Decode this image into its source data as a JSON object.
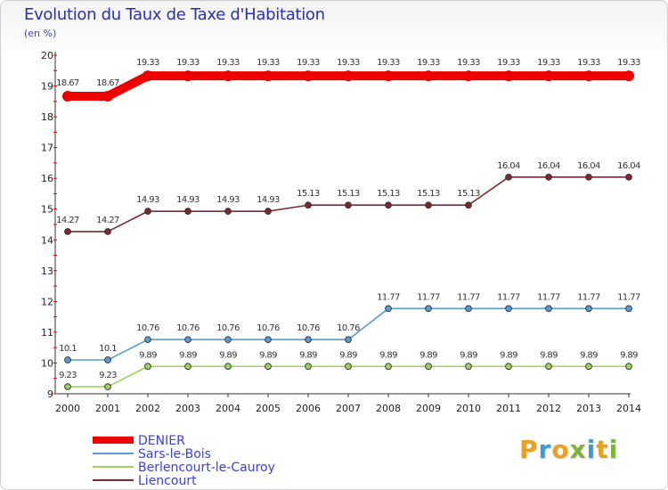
{
  "title": "Evolution du Taux de Taxe d'Habitation",
  "subtitle": "(en %)",
  "logo": {
    "text": "Proxiti",
    "colors": [
      "#e8a21e",
      "#3b9ed6",
      "#e8a21e",
      "#7db43a",
      "#3b9ed6",
      "#e8a21e",
      "#7db43a"
    ]
  },
  "chart_data": {
    "type": "line",
    "title": "Evolution du Taux de Taxe d'Habitation",
    "ylabel": "(en %)",
    "x": [
      "2000",
      "2001",
      "2002",
      "2003",
      "2004",
      "2005",
      "2006",
      "2007",
      "2008",
      "2009",
      "2010",
      "2011",
      "2012",
      "2013",
      "2014"
    ],
    "ylim": [
      9,
      20
    ],
    "yticks": [
      "9",
      "10",
      "11",
      "12",
      "13",
      "14",
      "15",
      "16",
      "17",
      "18",
      "19",
      "20"
    ],
    "grid": false,
    "legend_placement": "bottom-left",
    "series": [
      {
        "name": "DENIER",
        "color": "#ee0000",
        "values": [
          18.67,
          18.67,
          19.33,
          19.33,
          19.33,
          19.33,
          19.33,
          19.33,
          19.33,
          19.33,
          19.33,
          19.33,
          19.33,
          19.33,
          19.33
        ],
        "labels": [
          "18.67",
          "18.67",
          "19.33",
          "19.33",
          "19.33",
          "19.33",
          "19.33",
          "19.33",
          "19.33",
          "19.33",
          "19.33",
          "19.33",
          "19.33",
          "19.33",
          "19.33"
        ]
      },
      {
        "name": "Sars-le-Bois",
        "color": "#5b9bd5",
        "values": [
          10.1,
          10.1,
          10.76,
          10.76,
          10.76,
          10.76,
          10.76,
          10.76,
          11.77,
          11.77,
          11.77,
          11.77,
          11.77,
          11.77,
          11.77
        ],
        "labels": [
          "10.1",
          "10.1",
          "10.76",
          "10.76",
          "10.76",
          "10.76",
          "10.76",
          "10.76",
          "11.77",
          "11.77",
          "11.77",
          "11.77",
          "11.77",
          "11.77",
          "11.77"
        ]
      },
      {
        "name": "Berlencourt-le-Cauroy",
        "color": "#9ad45c",
        "values": [
          9.23,
          9.23,
          9.89,
          9.89,
          9.89,
          9.89,
          9.89,
          9.89,
          9.89,
          9.89,
          9.89,
          9.89,
          9.89,
          9.89,
          9.89
        ],
        "labels": [
          "9.23",
          "9.23",
          "9.89",
          "9.89",
          "9.89",
          "9.89",
          "9.89",
          "9.89",
          "9.89",
          "9.89",
          "9.89",
          "9.89",
          "9.89",
          "9.89",
          "9.89"
        ]
      },
      {
        "name": "Liencourt",
        "color": "#7a2a2e",
        "values": [
          14.27,
          14.27,
          14.93,
          14.93,
          14.93,
          14.93,
          15.13,
          15.13,
          15.13,
          15.13,
          15.13,
          16.04,
          16.04,
          16.04,
          16.04
        ],
        "labels": [
          "14.27",
          "14.27",
          "14.93",
          "14.93",
          "14.93",
          "14.93",
          "15.13",
          "15.13",
          "15.13",
          "15.13",
          "15.13",
          "16.04",
          "16.04",
          "16.04",
          "16.04"
        ]
      }
    ]
  }
}
